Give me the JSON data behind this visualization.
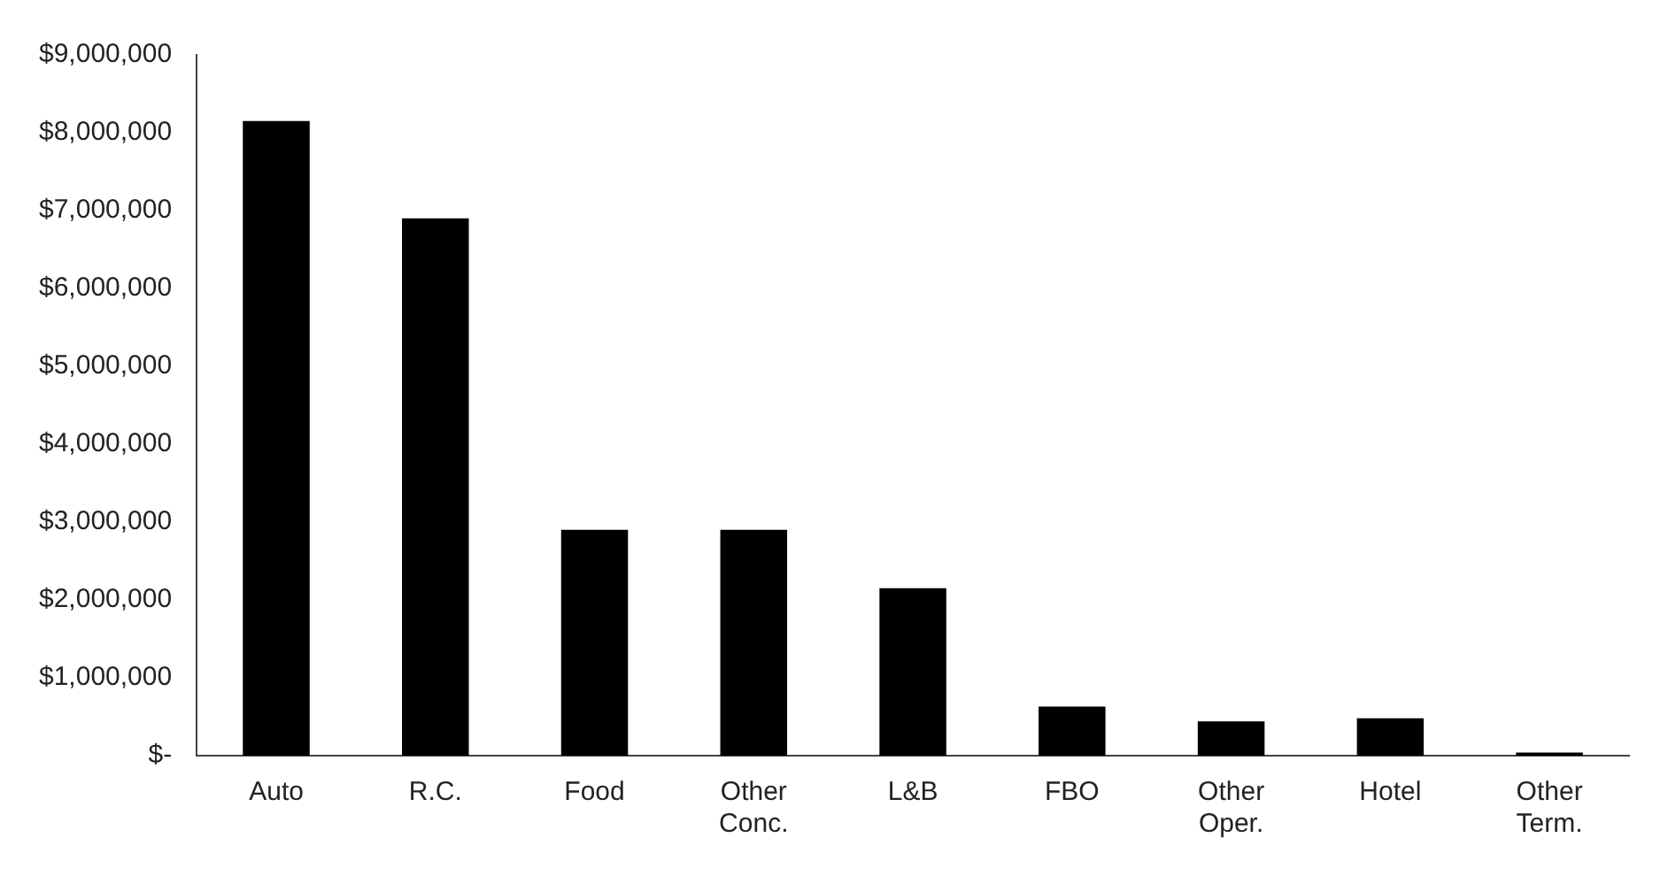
{
  "chart_data": {
    "type": "bar",
    "categories": [
      "Auto",
      "R.C.",
      "Food",
      "Other Conc.",
      "L&B",
      "FBO",
      "Other Oper.",
      "Hotel",
      "Other Term."
    ],
    "values": [
      8150000,
      6900000,
      2900000,
      2900000,
      2150000,
      630000,
      440000,
      480000,
      40000
    ],
    "color": "#000000",
    "ylim": [
      0,
      9000000
    ],
    "yticks": [
      {
        "value": 0,
        "label": "$-"
      },
      {
        "value": 1000000,
        "label": "$1,000,000"
      },
      {
        "value": 2000000,
        "label": "$2,000,000"
      },
      {
        "value": 3000000,
        "label": "$3,000,000"
      },
      {
        "value": 4000000,
        "label": "$4,000,000"
      },
      {
        "value": 5000000,
        "label": "$5,000,000"
      },
      {
        "value": 6000000,
        "label": "$6,000,000"
      },
      {
        "value": 7000000,
        "label": "$7,000,000"
      },
      {
        "value": 8000000,
        "label": "$8,000,000"
      },
      {
        "value": 9000000,
        "label": "$9,000,000"
      }
    ],
    "grid": false,
    "legend": false
  }
}
